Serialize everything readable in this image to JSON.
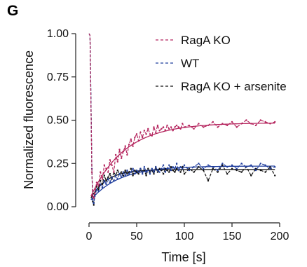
{
  "panel_label": "G",
  "chart_data": {
    "type": "line",
    "title": "",
    "xlabel": "Time [s]",
    "ylabel": "Normalized fluorescence",
    "xlim": [
      0,
      200
    ],
    "ylim": [
      0,
      1
    ],
    "x_ticks": [
      0,
      50,
      100,
      150,
      200
    ],
    "x_tick_labels": [
      "0",
      "50",
      "100",
      "150",
      "200"
    ],
    "y_ticks": [
      0,
      0.25,
      0.5,
      0.75,
      1.0
    ],
    "y_tick_labels": [
      "0.00",
      "0.25",
      "0.50",
      "0.75",
      "1.00"
    ],
    "grid": false,
    "legend_position": "top-right",
    "series": [
      {
        "name": "RagA KO",
        "color": "#b5255e",
        "style": "dashed",
        "x": [
          0,
          1,
          2,
          3,
          4,
          5,
          6,
          8,
          10,
          12,
          14,
          16,
          18,
          20,
          22,
          24,
          26,
          28,
          30,
          32,
          34,
          36,
          38,
          40,
          42,
          44,
          46,
          48,
          50,
          52,
          54,
          56,
          58,
          60,
          62,
          64,
          66,
          68,
          70,
          72,
          74,
          76,
          78,
          80,
          82,
          84,
          86,
          88,
          90,
          92,
          94,
          96,
          98,
          100,
          105,
          110,
          115,
          120,
          125,
          130,
          135,
          140,
          145,
          150,
          155,
          160,
          165,
          170,
          175,
          180,
          185,
          190,
          195
        ],
        "y": [
          1.0,
          0.99,
          0.6,
          0.2,
          0.06,
          0.05,
          0.08,
          0.14,
          0.12,
          0.2,
          0.16,
          0.24,
          0.22,
          0.2,
          0.27,
          0.24,
          0.2,
          0.3,
          0.26,
          0.33,
          0.28,
          0.32,
          0.35,
          0.3,
          0.36,
          0.39,
          0.35,
          0.4,
          0.42,
          0.38,
          0.43,
          0.4,
          0.44,
          0.42,
          0.45,
          0.42,
          0.41,
          0.46,
          0.43,
          0.47,
          0.44,
          0.45,
          0.46,
          0.44,
          0.47,
          0.45,
          0.46,
          0.44,
          0.46,
          0.47,
          0.46,
          0.45,
          0.48,
          0.46,
          0.47,
          0.45,
          0.48,
          0.46,
          0.47,
          0.49,
          0.46,
          0.48,
          0.47,
          0.49,
          0.46,
          0.48,
          0.5,
          0.48,
          0.47,
          0.5,
          0.49,
          0.48,
          0.49
        ]
      },
      {
        "name": "WT",
        "color": "#1f3d9c",
        "style": "dashed",
        "x": [
          0,
          1,
          2,
          3,
          4,
          5,
          6,
          8,
          10,
          12,
          14,
          16,
          18,
          20,
          22,
          24,
          26,
          28,
          30,
          32,
          34,
          36,
          38,
          40,
          42,
          44,
          46,
          48,
          50,
          52,
          54,
          56,
          58,
          60,
          62,
          64,
          66,
          68,
          70,
          72,
          74,
          76,
          78,
          80,
          82,
          84,
          86,
          88,
          90,
          92,
          94,
          96,
          98,
          100,
          105,
          110,
          115,
          120,
          125,
          130,
          135,
          140,
          145,
          150,
          155,
          160,
          165,
          170,
          175,
          180,
          185,
          190,
          195
        ],
        "y": [
          1.0,
          0.99,
          0.65,
          0.22,
          0.04,
          0.02,
          0.06,
          0.1,
          0.09,
          0.13,
          0.11,
          0.15,
          0.13,
          0.16,
          0.14,
          0.17,
          0.15,
          0.18,
          0.16,
          0.19,
          0.17,
          0.2,
          0.18,
          0.21,
          0.19,
          0.2,
          0.22,
          0.19,
          0.21,
          0.2,
          0.22,
          0.19,
          0.23,
          0.2,
          0.21,
          0.19,
          0.22,
          0.2,
          0.23,
          0.21,
          0.2,
          0.22,
          0.24,
          0.2,
          0.22,
          0.24,
          0.21,
          0.23,
          0.22,
          0.25,
          0.21,
          0.23,
          0.22,
          0.24,
          0.21,
          0.23,
          0.25,
          0.22,
          0.24,
          0.23,
          0.21,
          0.25,
          0.23,
          0.24,
          0.22,
          0.25,
          0.23,
          0.24,
          0.21,
          0.25,
          0.24,
          0.22,
          0.23
        ]
      },
      {
        "name": "RagA KO + arsenite",
        "color": "#111111",
        "style": "dashed",
        "x": [
          0,
          1,
          2,
          3,
          4,
          5,
          6,
          8,
          10,
          12,
          14,
          16,
          18,
          20,
          22,
          24,
          26,
          28,
          30,
          32,
          34,
          36,
          38,
          40,
          42,
          44,
          46,
          48,
          50,
          52,
          54,
          56,
          58,
          60,
          62,
          64,
          66,
          68,
          70,
          72,
          74,
          76,
          78,
          80,
          82,
          84,
          86,
          88,
          90,
          92,
          94,
          96,
          98,
          100,
          105,
          110,
          115,
          120,
          125,
          130,
          135,
          140,
          145,
          150,
          155,
          160,
          165,
          170,
          175,
          180,
          185,
          190,
          195
        ],
        "y": [
          1.0,
          0.99,
          0.62,
          0.2,
          0.03,
          0.01,
          0.07,
          0.12,
          0.1,
          0.15,
          0.13,
          0.18,
          0.15,
          0.17,
          0.19,
          0.16,
          0.2,
          0.18,
          0.21,
          0.19,
          0.2,
          0.18,
          0.21,
          0.19,
          0.2,
          0.22,
          0.18,
          0.21,
          0.2,
          0.19,
          0.22,
          0.2,
          0.21,
          0.18,
          0.22,
          0.2,
          0.21,
          0.19,
          0.23,
          0.2,
          0.22,
          0.21,
          0.19,
          0.22,
          0.21,
          0.2,
          0.23,
          0.21,
          0.2,
          0.22,
          0.21,
          0.2,
          0.23,
          0.19,
          0.22,
          0.2,
          0.23,
          0.21,
          0.15,
          0.22,
          0.2,
          0.24,
          0.19,
          0.22,
          0.21,
          0.2,
          0.23,
          0.18,
          0.22,
          0.21,
          0.2,
          0.23,
          0.18
        ]
      }
    ],
    "fits": [
      {
        "series": "RagA KO",
        "color": "#b5255e",
        "y0": 0.06,
        "plateau": 0.485,
        "rate": 0.028,
        "x_start": 2,
        "x_end": 195
      },
      {
        "series": "WT",
        "color": "#1f3d9c",
        "y0": 0.04,
        "plateau": 0.235,
        "rate": 0.033,
        "x_start": 2,
        "x_end": 195
      },
      {
        "series": "RagA KO + arsenite",
        "color": "#111111",
        "y0": 0.05,
        "plateau": 0.215,
        "rate": 0.06,
        "x_start": 2,
        "x_end": 195
      }
    ]
  }
}
